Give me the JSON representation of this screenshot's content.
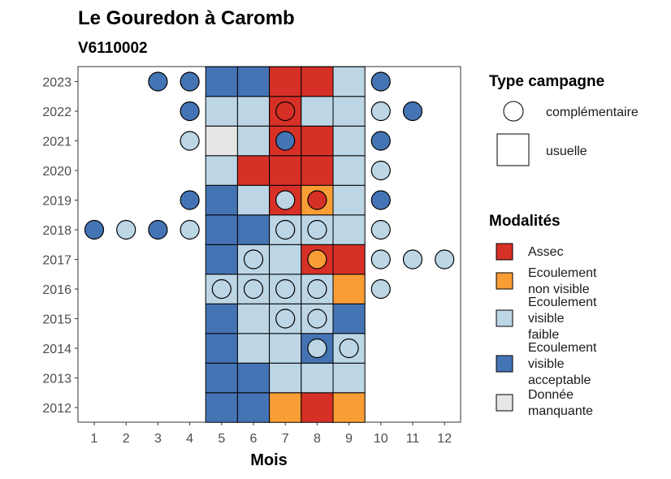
{
  "chart_data": {
    "type": "heatmap",
    "title": "Le Gouredon à Caromb",
    "subtitle": "V6110002",
    "xlabel": "Mois",
    "ylabel": "",
    "x_ticks": [
      "1",
      "2",
      "3",
      "4",
      "5",
      "6",
      "7",
      "8",
      "9",
      "10",
      "11",
      "12"
    ],
    "y_ticks": [
      "2012",
      "2013",
      "2014",
      "2015",
      "2016",
      "2017",
      "2018",
      "2019",
      "2020",
      "2021",
      "2022",
      "2023"
    ],
    "colors": {
      "assec": "#d73027",
      "nonvis": "#fb9d35",
      "faible": "#bcd6e6",
      "accept": "#4574b5",
      "manq": "#e6e6e6"
    },
    "legend_campagne": {
      "title": "Type campagne",
      "items": [
        {
          "key": "complementaire",
          "label": "complémentaire",
          "shape": "circle"
        },
        {
          "key": "usuelle",
          "label": "usuelle",
          "shape": "square"
        }
      ]
    },
    "legend_modalites": {
      "title": "Modalités",
      "items": [
        {
          "key": "assec",
          "lines": [
            "Assec"
          ]
        },
        {
          "key": "nonvis",
          "lines": [
            "Ecoulement",
            "non visible"
          ]
        },
        {
          "key": "faible",
          "lines": [
            "Ecoulement",
            "visible",
            "faible"
          ]
        },
        {
          "key": "accept",
          "lines": [
            "Ecoulement",
            "visible",
            "acceptable"
          ]
        },
        {
          "key": "manq",
          "lines": [
            "Donnée",
            "manquante"
          ]
        }
      ]
    },
    "usuelle": [
      {
        "year": 2012,
        "month": 5,
        "value": "accept"
      },
      {
        "year": 2012,
        "month": 6,
        "value": "accept"
      },
      {
        "year": 2012,
        "month": 7,
        "value": "nonvis"
      },
      {
        "year": 2012,
        "month": 8,
        "value": "assec"
      },
      {
        "year": 2012,
        "month": 9,
        "value": "nonvis"
      },
      {
        "year": 2013,
        "month": 5,
        "value": "accept"
      },
      {
        "year": 2013,
        "month": 6,
        "value": "accept"
      },
      {
        "year": 2013,
        "month": 7,
        "value": "faible"
      },
      {
        "year": 2013,
        "month": 8,
        "value": "faible"
      },
      {
        "year": 2013,
        "month": 9,
        "value": "faible"
      },
      {
        "year": 2014,
        "month": 5,
        "value": "accept"
      },
      {
        "year": 2014,
        "month": 6,
        "value": "faible"
      },
      {
        "year": 2014,
        "month": 7,
        "value": "faible"
      },
      {
        "year": 2014,
        "month": 8,
        "value": "accept"
      },
      {
        "year": 2014,
        "month": 9,
        "value": "faible"
      },
      {
        "year": 2015,
        "month": 5,
        "value": "accept"
      },
      {
        "year": 2015,
        "month": 6,
        "value": "faible"
      },
      {
        "year": 2015,
        "month": 7,
        "value": "faible"
      },
      {
        "year": 2015,
        "month": 8,
        "value": "faible"
      },
      {
        "year": 2015,
        "month": 9,
        "value": "accept"
      },
      {
        "year": 2016,
        "month": 5,
        "value": "faible"
      },
      {
        "year": 2016,
        "month": 6,
        "value": "faible"
      },
      {
        "year": 2016,
        "month": 7,
        "value": "faible"
      },
      {
        "year": 2016,
        "month": 8,
        "value": "faible"
      },
      {
        "year": 2016,
        "month": 9,
        "value": "nonvis"
      },
      {
        "year": 2017,
        "month": 5,
        "value": "accept"
      },
      {
        "year": 2017,
        "month": 6,
        "value": "faible"
      },
      {
        "year": 2017,
        "month": 7,
        "value": "faible"
      },
      {
        "year": 2017,
        "month": 8,
        "value": "assec"
      },
      {
        "year": 2017,
        "month": 9,
        "value": "assec"
      },
      {
        "year": 2018,
        "month": 5,
        "value": "accept"
      },
      {
        "year": 2018,
        "month": 6,
        "value": "accept"
      },
      {
        "year": 2018,
        "month": 7,
        "value": "faible"
      },
      {
        "year": 2018,
        "month": 8,
        "value": "faible"
      },
      {
        "year": 2018,
        "month": 9,
        "value": "faible"
      },
      {
        "year": 2019,
        "month": 5,
        "value": "accept"
      },
      {
        "year": 2019,
        "month": 6,
        "value": "faible"
      },
      {
        "year": 2019,
        "month": 7,
        "value": "assec"
      },
      {
        "year": 2019,
        "month": 8,
        "value": "nonvis"
      },
      {
        "year": 2019,
        "month": 9,
        "value": "faible"
      },
      {
        "year": 2020,
        "month": 5,
        "value": "faible"
      },
      {
        "year": 2020,
        "month": 6,
        "value": "assec"
      },
      {
        "year": 2020,
        "month": 7,
        "value": "assec"
      },
      {
        "year": 2020,
        "month": 8,
        "value": "assec"
      },
      {
        "year": 2020,
        "month": 9,
        "value": "faible"
      },
      {
        "year": 2021,
        "month": 5,
        "value": "manq"
      },
      {
        "year": 2021,
        "month": 6,
        "value": "faible"
      },
      {
        "year": 2021,
        "month": 7,
        "value": "assec"
      },
      {
        "year": 2021,
        "month": 8,
        "value": "assec"
      },
      {
        "year": 2021,
        "month": 9,
        "value": "faible"
      },
      {
        "year": 2022,
        "month": 5,
        "value": "faible"
      },
      {
        "year": 2022,
        "month": 6,
        "value": "faible"
      },
      {
        "year": 2022,
        "month": 7,
        "value": "assec"
      },
      {
        "year": 2022,
        "month": 8,
        "value": "faible"
      },
      {
        "year": 2022,
        "month": 9,
        "value": "faible"
      },
      {
        "year": 2023,
        "month": 5,
        "value": "accept"
      },
      {
        "year": 2023,
        "month": 6,
        "value": "accept"
      },
      {
        "year": 2023,
        "month": 7,
        "value": "assec"
      },
      {
        "year": 2023,
        "month": 8,
        "value": "assec"
      },
      {
        "year": 2023,
        "month": 9,
        "value": "faible"
      }
    ],
    "complementaire": [
      {
        "year": 2023,
        "month": 3,
        "value": "accept"
      },
      {
        "year": 2023,
        "month": 4,
        "value": "accept"
      },
      {
        "year": 2023,
        "month": 10,
        "value": "accept"
      },
      {
        "year": 2022,
        "month": 4,
        "value": "accept"
      },
      {
        "year": 2022,
        "month": 7,
        "value": "assec"
      },
      {
        "year": 2022,
        "month": 10,
        "value": "faible"
      },
      {
        "year": 2022,
        "month": 11,
        "value": "accept"
      },
      {
        "year": 2021,
        "month": 4,
        "value": "faible"
      },
      {
        "year": 2021,
        "month": 7,
        "value": "accept"
      },
      {
        "year": 2021,
        "month": 10,
        "value": "accept"
      },
      {
        "year": 2020,
        "month": 10,
        "value": "faible"
      },
      {
        "year": 2019,
        "month": 4,
        "value": "accept"
      },
      {
        "year": 2019,
        "month": 7,
        "value": "faible"
      },
      {
        "year": 2019,
        "month": 8,
        "value": "assec"
      },
      {
        "year": 2019,
        "month": 10,
        "value": "accept"
      },
      {
        "year": 2018,
        "month": 1,
        "value": "accept"
      },
      {
        "year": 2018,
        "month": 2,
        "value": "faible"
      },
      {
        "year": 2018,
        "month": 3,
        "value": "accept"
      },
      {
        "year": 2018,
        "month": 4,
        "value": "faible"
      },
      {
        "year": 2018,
        "month": 7,
        "value": "faible"
      },
      {
        "year": 2018,
        "month": 8,
        "value": "faible"
      },
      {
        "year": 2018,
        "month": 10,
        "value": "faible"
      },
      {
        "year": 2017,
        "month": 6,
        "value": "faible"
      },
      {
        "year": 2017,
        "month": 8,
        "value": "nonvis"
      },
      {
        "year": 2017,
        "month": 10,
        "value": "faible"
      },
      {
        "year": 2017,
        "month": 11,
        "value": "faible"
      },
      {
        "year": 2017,
        "month": 12,
        "value": "faible"
      },
      {
        "year": 2016,
        "month": 5,
        "value": "faible"
      },
      {
        "year": 2016,
        "month": 6,
        "value": "faible"
      },
      {
        "year": 2016,
        "month": 7,
        "value": "faible"
      },
      {
        "year": 2016,
        "month": 8,
        "value": "faible"
      },
      {
        "year": 2016,
        "month": 10,
        "value": "faible"
      },
      {
        "year": 2015,
        "month": 7,
        "value": "faible"
      },
      {
        "year": 2015,
        "month": 8,
        "value": "faible"
      },
      {
        "year": 2014,
        "month": 8,
        "value": "faible"
      },
      {
        "year": 2014,
        "month": 9,
        "value": "faible"
      }
    ]
  }
}
